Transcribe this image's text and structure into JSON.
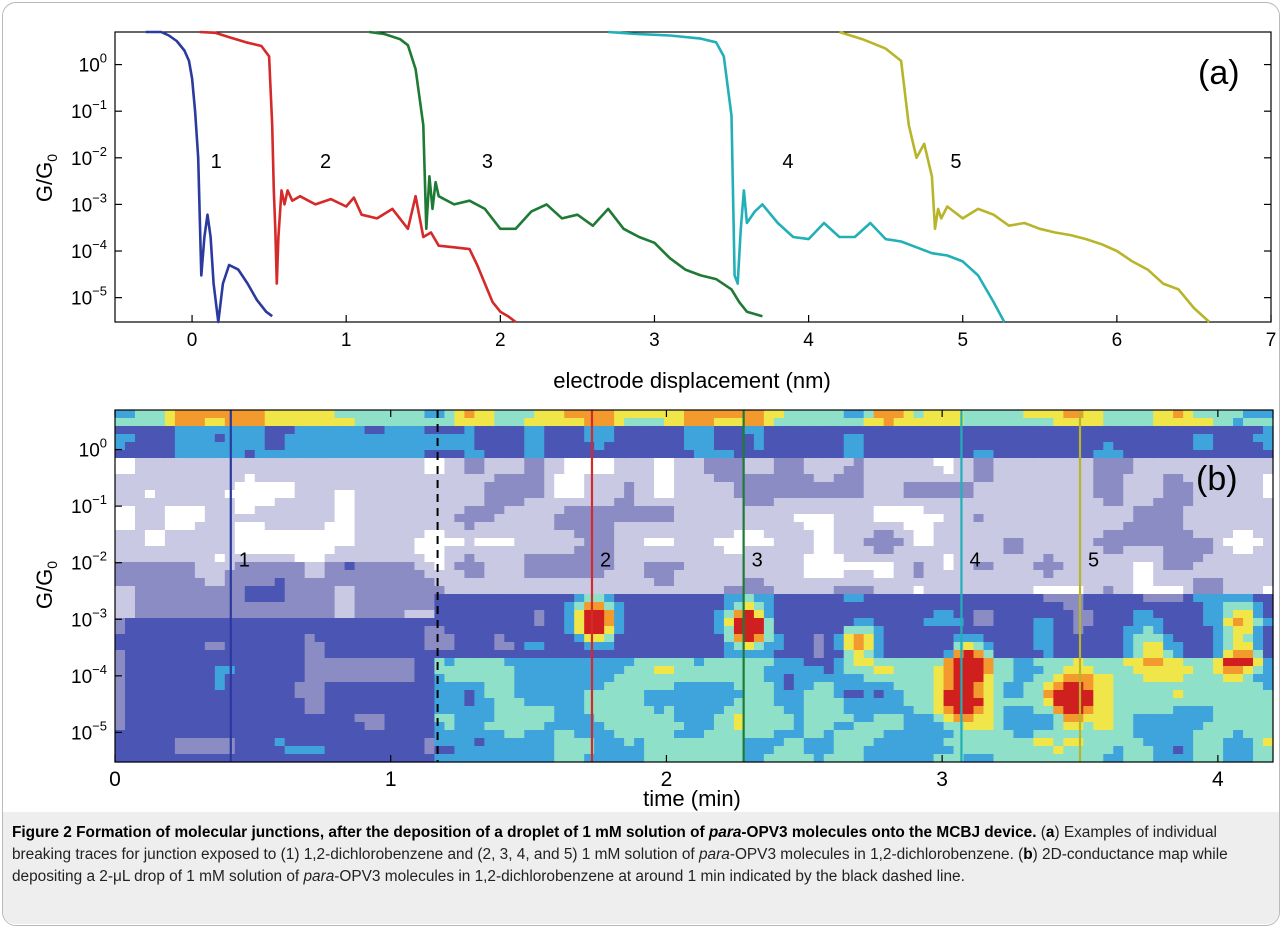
{
  "chart_data": [
    {
      "panel_label": "(a)",
      "type": "line",
      "xlabel": "electrode displacement (nm)",
      "ylabel": "G/G0",
      "xlim": [
        -0.5,
        7
      ],
      "ylim": [
        3e-06,
        5
      ],
      "yscale": "log",
      "xticks": [
        "0",
        "1",
        "2",
        "3",
        "4",
        "5",
        "6",
        "7"
      ],
      "yticks": [
        "10^0",
        "10^-1",
        "10^-2",
        "10^-3",
        "10^-4",
        "10^-5"
      ],
      "trace_labels": [
        "1",
        "2",
        "3",
        "4",
        "5"
      ],
      "series": [
        {
          "color": "#2b3a9e",
          "x": [
            -0.3,
            -0.2,
            -0.15,
            -0.1,
            -0.05,
            -0.02,
            0.0,
            0.02,
            0.04,
            0.05,
            0.06,
            0.08,
            0.1,
            0.12,
            0.14,
            0.17,
            0.2,
            0.24,
            0.3,
            0.36,
            0.42,
            0.48,
            0.52
          ],
          "y": [
            5,
            5,
            4.2,
            3.2,
            2.0,
            1.2,
            0.5,
            0.1,
            0.01,
            0.0005,
            3e-05,
            0.0002,
            0.0006,
            0.0002,
            2e-05,
            3e-06,
            2e-05,
            5e-05,
            4e-05,
            2e-05,
            9e-06,
            5e-06,
            4e-06
          ]
        },
        {
          "color": "#d42a2a",
          "x": [
            0.05,
            0.15,
            0.25,
            0.35,
            0.45,
            0.5,
            0.52,
            0.53,
            0.54,
            0.55,
            0.56,
            0.58,
            0.6,
            0.62,
            0.65,
            0.7,
            0.8,
            0.9,
            1.0,
            1.05,
            1.1,
            1.2,
            1.3,
            1.4,
            1.45,
            1.5,
            1.55,
            1.6,
            1.7,
            1.8,
            1.85,
            1.9,
            1.95,
            2.0,
            2.05,
            2.1
          ],
          "y": [
            5,
            4.8,
            3.8,
            3.0,
            2.5,
            1.5,
            0.05,
            0.002,
            0.0003,
            2e-05,
            0.0002,
            0.002,
            0.001,
            0.002,
            0.0012,
            0.0015,
            0.001,
            0.0013,
            0.0009,
            0.0014,
            0.0006,
            0.0005,
            0.0008,
            0.0003,
            0.0015,
            0.0002,
            0.00025,
            0.00013,
            0.00012,
            0.00011,
            5e-05,
            2e-05,
            8e-06,
            5e-06,
            4e-06,
            3e-06
          ]
        },
        {
          "color": "#1f7a35",
          "x": [
            1.15,
            1.25,
            1.35,
            1.4,
            1.45,
            1.5,
            1.52,
            1.54,
            1.56,
            1.58,
            1.6,
            1.7,
            1.8,
            1.9,
            2.0,
            2.1,
            2.2,
            2.3,
            2.4,
            2.5,
            2.6,
            2.7,
            2.8,
            2.9,
            3.0,
            3.1,
            3.2,
            3.3,
            3.4,
            3.5,
            3.55,
            3.6,
            3.7
          ],
          "y": [
            5,
            4.5,
            3.5,
            2.6,
            0.8,
            0.05,
            0.0003,
            0.004,
            0.0008,
            0.003,
            0.0015,
            0.001,
            0.0012,
            0.0008,
            0.0003,
            0.0003,
            0.0007,
            0.001,
            0.0005,
            0.0006,
            0.00035,
            0.0008,
            0.0003,
            0.0002,
            0.00015,
            7e-05,
            4e-05,
            3e-05,
            2.5e-05,
            1.5e-05,
            8e-06,
            5e-06,
            4e-06
          ]
        },
        {
          "color": "#22b0b8",
          "x": [
            2.7,
            2.9,
            3.1,
            3.3,
            3.4,
            3.45,
            3.5,
            3.52,
            3.54,
            3.56,
            3.58,
            3.6,
            3.65,
            3.7,
            3.8,
            3.9,
            4.0,
            4.1,
            4.2,
            4.3,
            4.4,
            4.5,
            4.6,
            4.7,
            4.8,
            4.9,
            5.0,
            5.1,
            5.2,
            5.27
          ],
          "y": [
            5,
            4.5,
            4.2,
            3.6,
            3.0,
            1.5,
            0.08,
            3e-05,
            2e-05,
            0.0003,
            0.002,
            0.0004,
            0.0007,
            0.001,
            0.0004,
            0.0002,
            0.00018,
            0.0004,
            0.0002,
            0.0002,
            0.0004,
            0.00018,
            0.00016,
            0.00012,
            9e-05,
            8e-05,
            6e-05,
            3e-05,
            8e-06,
            3e-06
          ]
        },
        {
          "color": "#b8b52a",
          "x": [
            4.2,
            4.35,
            4.5,
            4.6,
            4.65,
            4.7,
            4.75,
            4.8,
            4.82,
            4.84,
            4.86,
            4.9,
            5.0,
            5.1,
            5.2,
            5.3,
            5.4,
            5.5,
            5.6,
            5.7,
            5.8,
            5.9,
            6.0,
            6.1,
            6.2,
            6.3,
            6.4,
            6.5,
            6.6
          ],
          "y": [
            5,
            3.5,
            2.2,
            1.2,
            0.05,
            0.01,
            0.02,
            0.004,
            0.0003,
            0.0008,
            0.0005,
            0.0009,
            0.0005,
            0.0008,
            0.0006,
            0.00035,
            0.0004,
            0.0003,
            0.00025,
            0.00022,
            0.00018,
            0.00014,
            0.0001,
            6e-05,
            4e-05,
            2e-05,
            1.5e-05,
            6e-06,
            3e-06
          ]
        }
      ]
    },
    {
      "panel_label": "(b)",
      "type": "heatmap",
      "xlabel": "time (min)",
      "ylabel": "G/G0",
      "xlim": [
        0,
        4.2
      ],
      "ylim": [
        3e-06,
        5
      ],
      "yscale": "log",
      "xticks": [
        "0",
        "1",
        "2",
        "3",
        "4"
      ],
      "yticks": [
        "10^0",
        "10^-1",
        "10^-2",
        "10^-3",
        "10^-4",
        "10^-5"
      ],
      "colorscale": [
        "#ffffff",
        "#c9c9e3",
        "#8c8cc4",
        "#4b55b4",
        "#3fa4dc",
        "#8fe0c8",
        "#f0e64a",
        "#f29a2e",
        "#d01f1f"
      ],
      "dashed_marker_time": 1.17,
      "trace_markers": [
        {
          "label": "1",
          "time": 0.42,
          "color": "#2b3a9e"
        },
        {
          "label": "2",
          "time": 1.73,
          "color": "#d42a2a"
        },
        {
          "label": "3",
          "time": 2.28,
          "color": "#1f7a35"
        },
        {
          "label": "4",
          "time": 3.07,
          "color": "#22b0b8"
        },
        {
          "label": "5",
          "time": 3.5,
          "color": "#b8b52a"
        }
      ],
      "hotspots": [
        {
          "time": 1.74,
          "g": 0.001,
          "level": 1.0
        },
        {
          "time": 2.3,
          "g": 0.0008,
          "level": 1.0
        },
        {
          "time": 3.1,
          "g": 0.0002,
          "level": 0.85
        },
        {
          "time": 3.07,
          "g": 4e-05,
          "level": 0.85
        },
        {
          "time": 3.48,
          "g": 4e-05,
          "level": 0.95
        },
        {
          "time": 4.08,
          "g": 0.0002,
          "level": 0.7
        },
        {
          "time": 4.08,
          "g": 0.001,
          "level": 0.6
        },
        {
          "time": 2.7,
          "g": 0.0004,
          "level": 0.55
        },
        {
          "time": 3.75,
          "g": 0.0003,
          "level": 0.5
        }
      ]
    }
  ],
  "caption": {
    "title": "Figure 2 Formation of molecular junctions, after the deposition of a droplet of 1 mM solution of ",
    "title_em": "para",
    "title_rest": "-OPV3 molecules onto the MCBJ device.",
    "p1": " (",
    "a_label": "a",
    "p2": ") Examples of individual breaking traces for junction exposed to (1) 1,2-dichlorobenzene and (2, 3, 4, and 5) 1 mM solution of ",
    "para": "para",
    "p3": "-OPV3 molecules in 1,2-dichlorobenzene. (",
    "b_label": "b",
    "p4": ") 2D-conductance map while depositing a 2-μL drop of 1 mM solution of ",
    "p5": "-OPV3 molecules in 1,2-dichlorobenzene at around 1 min indicated by the black dashed line."
  }
}
